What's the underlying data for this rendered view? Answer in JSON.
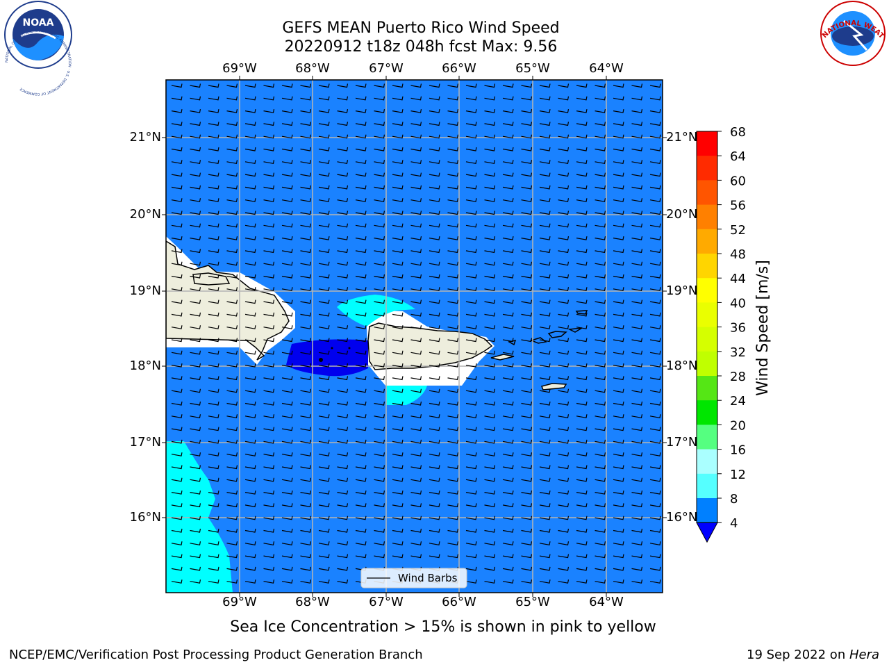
{
  "title": {
    "line1": "GEFS MEAN Puerto Rico Wind Speed",
    "line2": "20220912 t18z 048h fcst   Max: 9.56"
  },
  "axes": {
    "lon_labels": [
      "69°W",
      "68°W",
      "67°W",
      "66°W",
      "65°W",
      "64°W"
    ],
    "lat_labels": [
      "21°N",
      "20°N",
      "19°N",
      "18°N",
      "17°N",
      "16°N"
    ]
  },
  "colorbar": {
    "label": "Wind Speed [m/s]",
    "ticks": [
      "68",
      "64",
      "60",
      "56",
      "52",
      "48",
      "44",
      "40",
      "36",
      "32",
      "28",
      "24",
      "20",
      "16",
      "12",
      "8",
      "4"
    ],
    "colors": [
      "#ff0000",
      "#ff2b00",
      "#ff5500",
      "#ff8000",
      "#ffaa00",
      "#ffd500",
      "#ffff00",
      "#eaff00",
      "#d5ff00",
      "#c0ff00",
      "#55e615",
      "#00e600",
      "#55ff80",
      "#aaffff",
      "#55ffff",
      "#00ffff",
      "#0080ff"
    ],
    "extend_color": "#0000ff"
  },
  "colors": {
    "ocean": "#1a82ff",
    "low_wind": "#0000ee",
    "moderate_wind": "#00ffff",
    "land": "#eeeedd",
    "masked": "#ffffff"
  },
  "legend": {
    "label": "Wind Barbs"
  },
  "note": "Sea Ice Concentration > 15% is shown in pink to yellow",
  "footer": {
    "left": "NCEP/EMC/Verification Post Processing Product Generation Branch",
    "date": "19 Sep 2022 on ",
    "machine": "Hera"
  },
  "logos": {
    "left_text": "NOAA",
    "left_ring_text": "NATIONAL OCEANIC AND ATMOSPHERIC ADMINISTRATION · U.S. DEPARTMENT OF COMMERCE",
    "right_ring_text": "NATIONAL WEATHER SERVICE"
  }
}
